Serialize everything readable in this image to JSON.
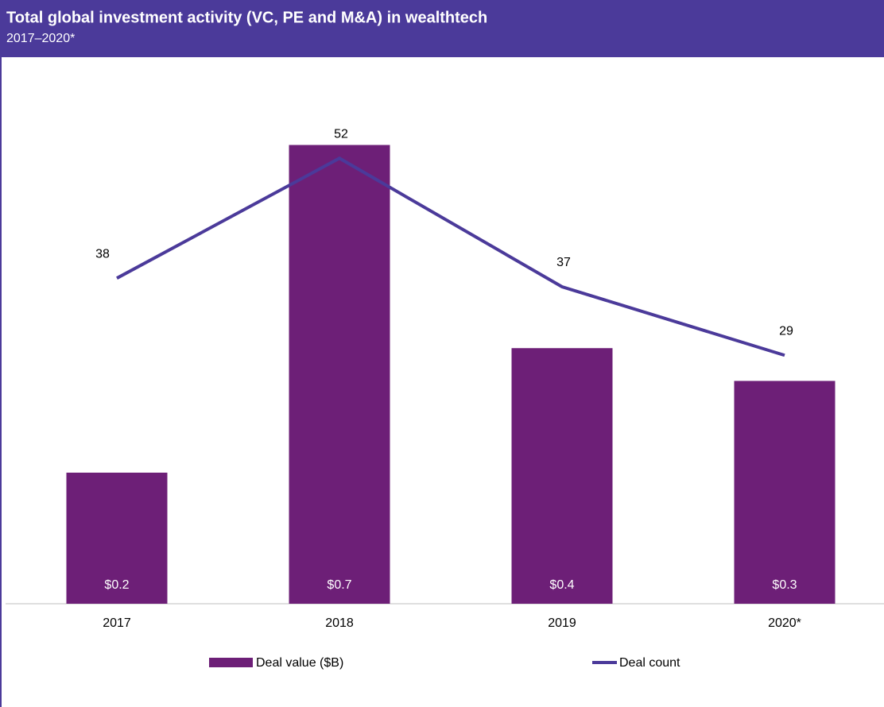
{
  "chart_data": {
    "type": "bar-line",
    "title": "Total global investment activity (VC, PE and M&A) in wealthtech",
    "subtitle": "2017–2020*",
    "categories": [
      "2017",
      "2018",
      "2019",
      "2020*"
    ],
    "series": [
      {
        "name": "Deal value ($B)",
        "type": "bar",
        "color": "#6d1f77",
        "values": [
          0.2,
          0.7,
          0.39,
          0.34
        ],
        "value_labels": [
          "$0.2",
          "$0.7",
          "$0.4",
          "$0.3"
        ]
      },
      {
        "name": "Deal count",
        "type": "line",
        "axis": "y2",
        "color": "#4b3a9a",
        "values": [
          38,
          52,
          37,
          29
        ]
      }
    ],
    "ylim": [
      0,
      0.8
    ],
    "y2lim": [
      0,
      61.2
    ],
    "legend": "bottom"
  }
}
